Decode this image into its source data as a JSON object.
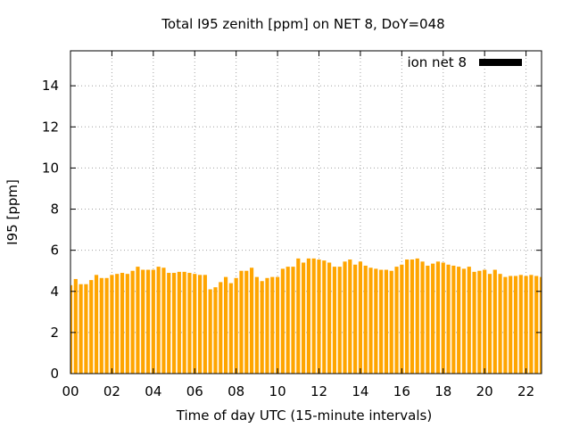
{
  "chart_data": {
    "type": "bar",
    "title": "Total I95 zenith [ppm] on NET 8, DoY=048",
    "xlabel": "Time of day UTC (15-minute intervals)",
    "ylabel": "I95 [ppm]",
    "xlim": [
      0,
      22.75
    ],
    "ylim": [
      0,
      15.7
    ],
    "grid": true,
    "legend_position": "top-right",
    "bar_color": "#ffa500",
    "legend_swatch_color": "#000000",
    "x_ticks": [
      {
        "value": 0,
        "label": "00"
      },
      {
        "value": 2,
        "label": "02"
      },
      {
        "value": 4,
        "label": "04"
      },
      {
        "value": 6,
        "label": "06"
      },
      {
        "value": 8,
        "label": "08"
      },
      {
        "value": 10,
        "label": "10"
      },
      {
        "value": 12,
        "label": "12"
      },
      {
        "value": 14,
        "label": "14"
      },
      {
        "value": 16,
        "label": "16"
      },
      {
        "value": 18,
        "label": "18"
      },
      {
        "value": 20,
        "label": "20"
      },
      {
        "value": 22,
        "label": "22"
      }
    ],
    "y_ticks": [
      {
        "value": 0,
        "label": "0"
      },
      {
        "value": 2,
        "label": "2"
      },
      {
        "value": 4,
        "label": "4"
      },
      {
        "value": 6,
        "label": "6"
      },
      {
        "value": 8,
        "label": "8"
      },
      {
        "value": 10,
        "label": "10"
      },
      {
        "value": 12,
        "label": "12"
      },
      {
        "value": 14,
        "label": "14"
      }
    ],
    "series": [
      {
        "name": "ion net 8",
        "x_start": 0,
        "x_step": 0.25,
        "values": [
          4.3,
          4.6,
          4.35,
          4.35,
          4.55,
          4.8,
          4.65,
          4.65,
          4.8,
          4.85,
          4.9,
          4.85,
          5.0,
          5.2,
          5.05,
          5.05,
          5.05,
          5.2,
          5.15,
          4.9,
          4.9,
          4.95,
          4.95,
          4.9,
          4.85,
          4.8,
          4.8,
          4.1,
          4.2,
          4.45,
          4.7,
          4.4,
          4.65,
          5.0,
          5.0,
          5.15,
          4.7,
          4.5,
          4.65,
          4.7,
          4.7,
          5.1,
          5.2,
          5.2,
          5.6,
          5.4,
          5.6,
          5.6,
          5.55,
          5.5,
          5.4,
          5.2,
          5.2,
          5.45,
          5.55,
          5.3,
          5.45,
          5.25,
          5.15,
          5.1,
          5.05,
          5.05,
          5.0,
          5.2,
          5.3,
          5.55,
          5.55,
          5.6,
          5.45,
          5.25,
          5.35,
          5.45,
          5.4,
          5.3,
          5.25,
          5.2,
          5.1,
          5.2,
          4.95,
          5.0,
          5.05,
          4.85,
          5.05,
          4.85,
          4.7,
          4.75,
          4.75,
          4.8,
          4.75,
          4.8,
          4.75,
          4.7,
          4.6
        ]
      }
    ]
  }
}
